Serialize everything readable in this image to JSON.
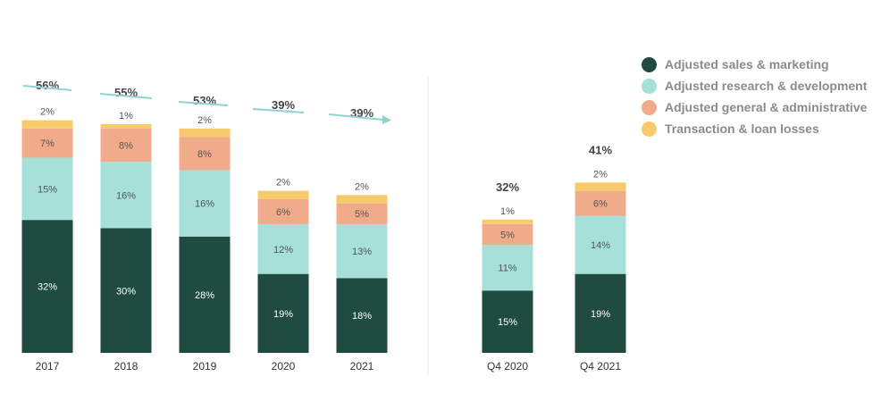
{
  "chart_data": {
    "type": "bar",
    "stacked": true,
    "categories": [
      "2017",
      "2018",
      "2019",
      "2020",
      "2021",
      "Q4 2020",
      "Q4 2021"
    ],
    "series": [
      {
        "name": "Adjusted sales & marketing",
        "color": "#1f4b40",
        "values": [
          32,
          30,
          28,
          19,
          18,
          15,
          19
        ],
        "labels": [
          "32%",
          "30%",
          "28%",
          "19%",
          "18%",
          "15%",
          "19%"
        ]
      },
      {
        "name": "Adjusted research & development",
        "color": "#a6e0d9",
        "values": [
          15,
          16,
          16,
          12,
          13,
          11,
          14
        ],
        "labels": [
          "15%",
          "16%",
          "16%",
          "12%",
          "13%",
          "11%",
          "14%"
        ]
      },
      {
        "name": "Adjusted general & administrative",
        "color": "#f0ab8b",
        "values": [
          7,
          8,
          8,
          6,
          5,
          5,
          6
        ],
        "labels": [
          "7%",
          "8%",
          "8%",
          "6%",
          "5%",
          "5%",
          "6%"
        ]
      },
      {
        "name": "Transaction & loan losses",
        "color": "#f7cb6b",
        "values": [
          2,
          1,
          2,
          2,
          2,
          1,
          2
        ],
        "labels": [
          "2%",
          "1%",
          "2%",
          "2%",
          "2%",
          "1%",
          "2%"
        ]
      }
    ],
    "totals": [
      "56%",
      "55%",
      "53%",
      "39%",
      "39%",
      "32%",
      "41%"
    ],
    "trend_color": "#8fd3cf",
    "legend_position": "top-right"
  }
}
